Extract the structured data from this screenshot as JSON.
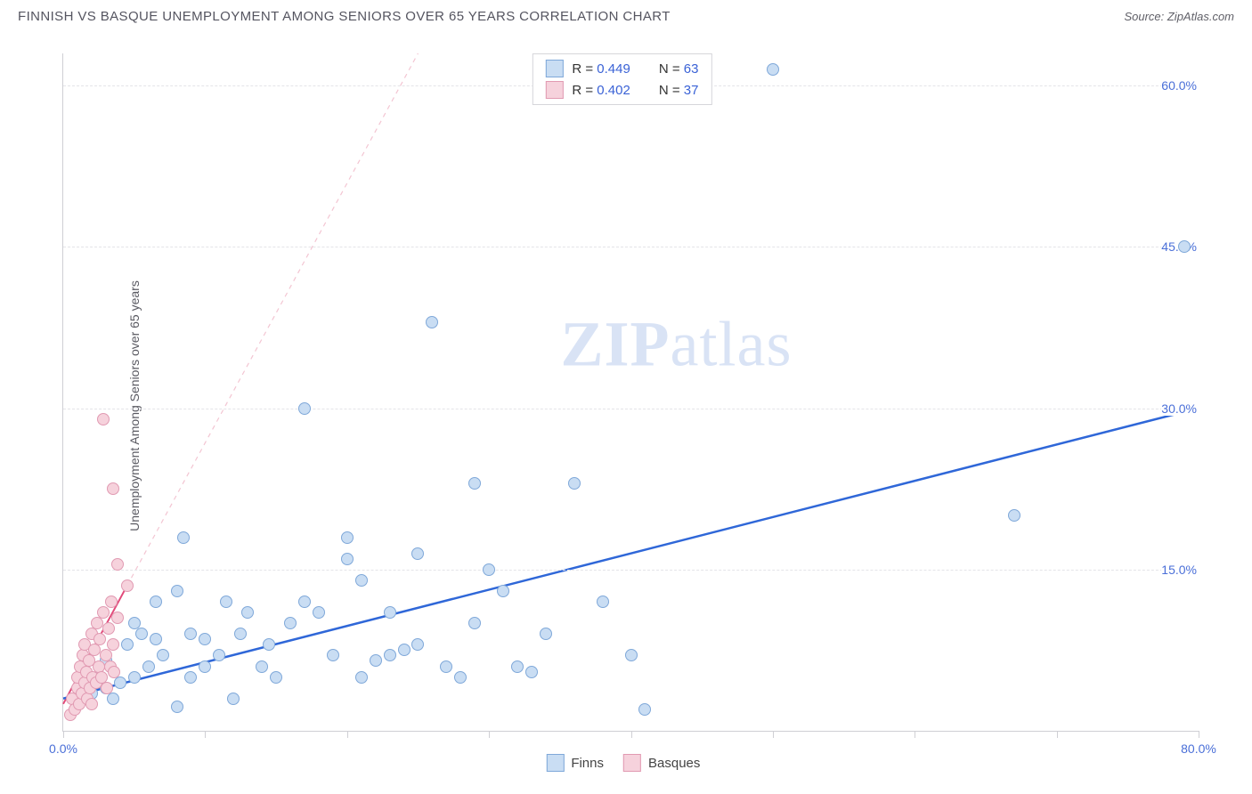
{
  "title": "FINNISH VS BASQUE UNEMPLOYMENT AMONG SENIORS OVER 65 YEARS CORRELATION CHART",
  "source_label": "Source: ZipAtlas.com",
  "ylabel": "Unemployment Among Seniors over 65 years",
  "watermark_a": "ZIP",
  "watermark_b": "atlas",
  "chart": {
    "type": "scatter",
    "background_color": "#ffffff",
    "grid_color": "#e4e4e8",
    "axis_color": "#cfcfd4",
    "xlim": [
      0,
      80
    ],
    "ylim": [
      0,
      63
    ],
    "x_ticks": [
      0,
      10,
      20,
      30,
      40,
      50,
      60,
      70,
      80
    ],
    "x_tick_labels": {
      "0": "0.0%",
      "80": "80.0%"
    },
    "y_gridlines": [
      15,
      30,
      45,
      60
    ],
    "y_tick_labels": {
      "15": "15.0%",
      "30": "30.0%",
      "45": "45.0%",
      "60": "60.0%"
    },
    "marker_radius": 7,
    "marker_stroke_width": 1.2,
    "series": {
      "finns": {
        "label": "Finns",
        "fill": "#c9ddf3",
        "stroke": "#7fa8d9",
        "trend": {
          "color": "#2f67d8",
          "width": 2.5,
          "dash": "none",
          "x1": 0,
          "y1": 3,
          "x2": 80,
          "y2": 30
        },
        "points": [
          [
            1,
            3
          ],
          [
            1.5,
            4
          ],
          [
            2,
            3.5
          ],
          [
            2.5,
            5
          ],
          [
            3,
            4
          ],
          [
            3,
            6.5
          ],
          [
            3.5,
            3
          ],
          [
            4,
            4.5
          ],
          [
            4.5,
            8
          ],
          [
            5,
            5
          ],
          [
            5,
            10
          ],
          [
            5.5,
            9
          ],
          [
            6,
            6
          ],
          [
            6.5,
            8.5
          ],
          [
            6.5,
            12
          ],
          [
            7,
            7
          ],
          [
            8,
            2.2
          ],
          [
            8,
            13
          ],
          [
            8.5,
            18
          ],
          [
            9,
            5
          ],
          [
            9,
            9
          ],
          [
            10,
            6
          ],
          [
            10,
            8.5
          ],
          [
            11,
            7
          ],
          [
            11.5,
            12
          ],
          [
            12,
            3
          ],
          [
            12.5,
            9
          ],
          [
            13,
            11
          ],
          [
            14,
            6
          ],
          [
            14.5,
            8
          ],
          [
            15,
            5
          ],
          [
            16,
            10
          ],
          [
            17,
            12
          ],
          [
            17,
            30
          ],
          [
            18,
            11
          ],
          [
            19,
            7
          ],
          [
            20,
            16
          ],
          [
            20,
            18
          ],
          [
            21,
            5
          ],
          [
            21,
            14
          ],
          [
            22,
            6.5
          ],
          [
            23,
            7
          ],
          [
            23,
            11
          ],
          [
            24,
            7.5
          ],
          [
            25,
            16.5
          ],
          [
            25,
            8
          ],
          [
            26,
            38
          ],
          [
            27,
            6
          ],
          [
            28,
            5
          ],
          [
            29,
            10
          ],
          [
            29,
            23
          ],
          [
            30,
            15
          ],
          [
            31,
            13
          ],
          [
            32,
            6
          ],
          [
            33,
            5.5
          ],
          [
            34,
            9
          ],
          [
            36,
            23
          ],
          [
            38,
            12
          ],
          [
            40,
            7
          ],
          [
            41,
            2
          ],
          [
            50,
            61.5
          ],
          [
            67,
            20
          ],
          [
            79,
            45
          ]
        ]
      },
      "basques": {
        "label": "Basques",
        "fill": "#f6d2dc",
        "stroke": "#e19ab2",
        "trend": {
          "color": "#e24a7a",
          "width": 2,
          "dash": "none",
          "x1": 0,
          "y1": 2.5,
          "x2": 4.5,
          "y2": 13.5
        },
        "trend_ext": {
          "color": "#f3c5d2",
          "width": 1.2,
          "dash": "5,5",
          "x1": 4.5,
          "y1": 13.5,
          "x2": 25,
          "y2": 63
        },
        "points": [
          [
            0.5,
            1.5
          ],
          [
            0.6,
            3
          ],
          [
            0.8,
            2
          ],
          [
            1,
            4
          ],
          [
            1,
            5
          ],
          [
            1.1,
            2.5
          ],
          [
            1.2,
            6
          ],
          [
            1.3,
            3.5
          ],
          [
            1.4,
            7
          ],
          [
            1.5,
            4.5
          ],
          [
            1.5,
            8
          ],
          [
            1.6,
            5.5
          ],
          [
            1.7,
            3
          ],
          [
            1.8,
            6.5
          ],
          [
            1.9,
            4
          ],
          [
            2,
            2.5
          ],
          [
            2,
            9
          ],
          [
            2.1,
            5
          ],
          [
            2.2,
            7.5
          ],
          [
            2.3,
            4.5
          ],
          [
            2.4,
            10
          ],
          [
            2.5,
            6
          ],
          [
            2.6,
            8.5
          ],
          [
            2.7,
            5
          ],
          [
            2.8,
            11
          ],
          [
            2.8,
            29
          ],
          [
            3,
            7
          ],
          [
            3.1,
            4
          ],
          [
            3.2,
            9.5
          ],
          [
            3.3,
            6
          ],
          [
            3.4,
            12
          ],
          [
            3.5,
            8
          ],
          [
            3.5,
            22.5
          ],
          [
            3.6,
            5.5
          ],
          [
            3.8,
            10.5
          ],
          [
            3.8,
            15.5
          ],
          [
            4.5,
            13.5
          ]
        ]
      }
    },
    "stats_legend": [
      {
        "swatch_fill": "#c9ddf3",
        "swatch_stroke": "#7fa8d9",
        "r_label": "R = ",
        "r_val": "0.449",
        "n_label": "N = ",
        "n_val": "63"
      },
      {
        "swatch_fill": "#f6d2dc",
        "swatch_stroke": "#e19ab2",
        "r_label": "R = ",
        "r_val": "0.402",
        "n_label": "N = ",
        "n_val": "37"
      }
    ]
  }
}
